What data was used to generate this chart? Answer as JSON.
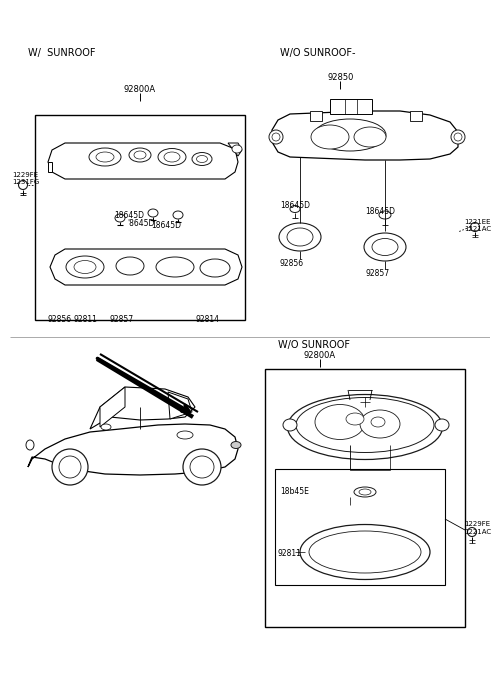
{
  "bg_color": "#ffffff",
  "line_color": "#1a1a1a",
  "labels": {
    "w_sunroof": "W/  SUNROOF",
    "wo_sunroof_top": "W/O SUNROOF-",
    "wo_sunroof_bot": "W/O SUNROOF",
    "part_92800A_top": "92800A",
    "part_92850": "92850",
    "part_92800A_bot": "92800A",
    "part_18645D_1": "18645D",
    "part_18645D_2": "'8645D",
    "part_18645D_3": "18645D",
    "part_18645D_4": "18645D",
    "part_18645D_5": "18b45E",
    "part_92856_1": "92856",
    "part_92811_1": "92811",
    "part_92857_1": "92857",
    "part_92814": "92814",
    "part_92856_2": "92856",
    "part_92857_2": "92857",
    "part_92811_2": "92811",
    "part_1229FE_1": "1229FE",
    "part_1231FG": "1231FG",
    "part_1221EE": "1221EE",
    "part_1221AC_1": "1221AC",
    "part_1229FE_2": "1229FE",
    "part_1221AC_2": "1221AC"
  }
}
